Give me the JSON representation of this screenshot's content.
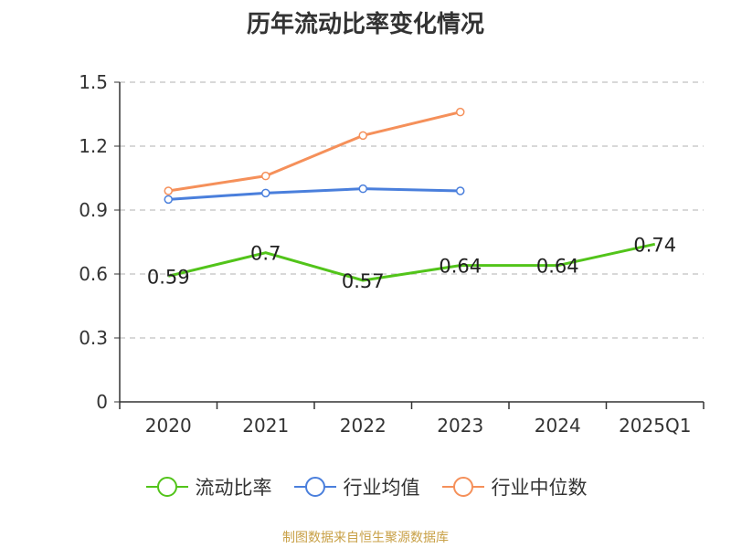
{
  "title": "历年流动比率变化情况",
  "source": "制图数据来自恒生聚源数据库",
  "chart_data": {
    "type": "line",
    "categories": [
      "2020",
      "2021",
      "2022",
      "2023",
      "2024",
      "2025Q1"
    ],
    "ylim": [
      0,
      1.5
    ],
    "yticks": [
      "0",
      "0.3",
      "0.6",
      "0.9",
      "1.2",
      "1.5"
    ],
    "grid": true,
    "legend_position": "bottom",
    "series": [
      {
        "name": "流动比率",
        "color": "#52c41a",
        "values": [
          0.59,
          0.7,
          0.57,
          0.64,
          0.64,
          0.74
        ],
        "labels": [
          "0.59",
          "0.7",
          "0.57",
          "0.64",
          "0.64",
          "0.74"
        ]
      },
      {
        "name": "行业均值",
        "color": "#4a7fdc",
        "values": [
          0.95,
          0.98,
          1.0,
          0.99,
          null,
          null
        ]
      },
      {
        "name": "行业中位数",
        "color": "#f5905a",
        "values": [
          0.99,
          1.06,
          1.25,
          1.36,
          null,
          null
        ]
      }
    ]
  }
}
